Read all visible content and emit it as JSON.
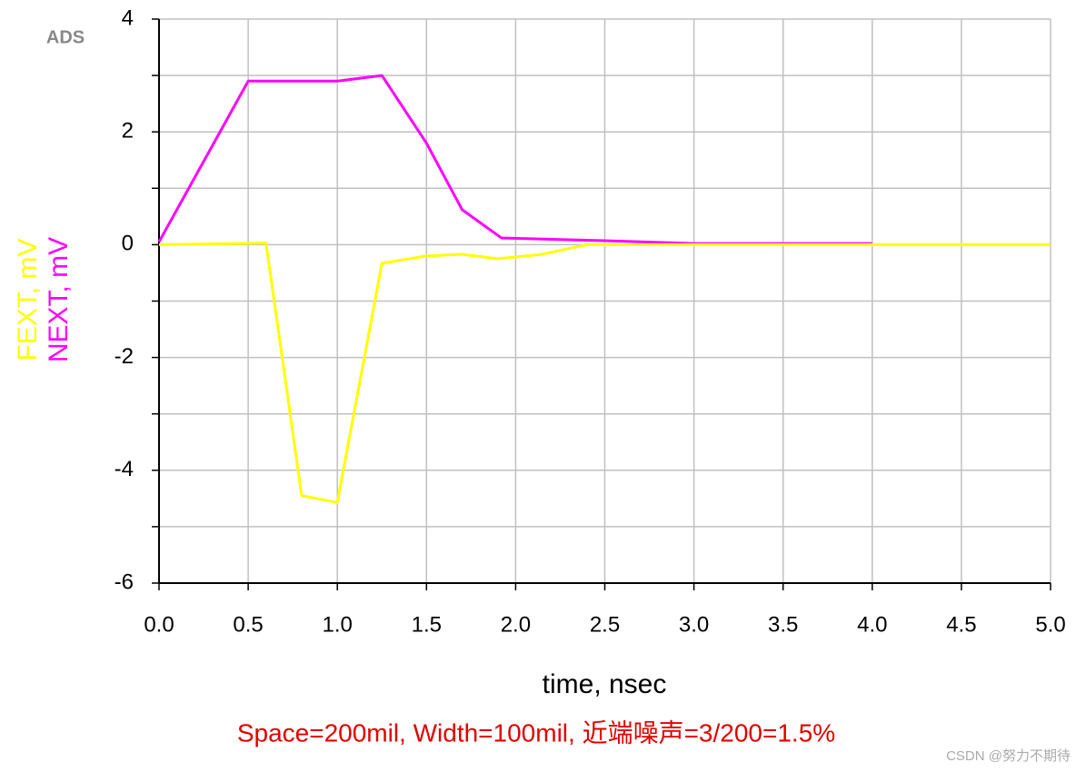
{
  "chart_data": {
    "type": "line",
    "logo": "ADS",
    "xlabel": "time, nsec",
    "caption": "Space=200mil, Width=100mil, 近端噪声=3/200=1.5%",
    "watermark": "CSDN @努力不期待",
    "xlim": [
      0,
      5
    ],
    "ylim": [
      -6,
      4
    ],
    "xticks": [
      {
        "value": 0,
        "label": "0.0"
      },
      0.5,
      {
        "value": 1,
        "label": "1.0"
      },
      1.5,
      {
        "value": 2,
        "label": "2.0"
      },
      2.5,
      {
        "value": 3,
        "label": "3.0"
      },
      3.5,
      {
        "value": 4,
        "label": "4.0"
      },
      4.5,
      {
        "value": 5,
        "label": "5.0"
      }
    ],
    "yticks": [
      4,
      2,
      0,
      -2,
      -4,
      -6
    ],
    "minor_yticks": [
      3,
      1,
      -1,
      -3,
      -5
    ],
    "grid": true,
    "series": [
      {
        "name": "FEXT, mV",
        "color": "#ffff00",
        "x": [
          0,
          0.45,
          0.6,
          0.8,
          1.0,
          1.25,
          1.5,
          1.7,
          1.9,
          2.15,
          2.4,
          5.0
        ],
        "values": [
          0,
          0.02,
          0.03,
          -4.45,
          -4.57,
          -0.33,
          -0.2,
          -0.17,
          -0.25,
          -0.17,
          0,
          0
        ]
      },
      {
        "name": "NEXT, mV",
        "color": "#ff00ff",
        "x": [
          0,
          0.5,
          1.0,
          1.25,
          1.5,
          1.7,
          1.92,
          2.5,
          3.0,
          4.0
        ],
        "values": [
          0.05,
          2.9,
          2.9,
          3.0,
          1.8,
          0.62,
          0.12,
          0.07,
          0.02,
          0.02
        ]
      }
    ]
  }
}
